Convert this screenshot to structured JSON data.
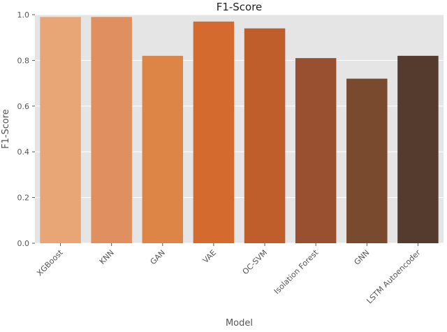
{
  "chart_data": {
    "type": "bar",
    "title": "F1-Score",
    "xlabel": "Model",
    "ylabel": "F1-Score",
    "categories": [
      "XGBoost",
      "KNN",
      "GAN",
      "VAE",
      "OC-SVM",
      "Isolation Forest",
      "GNN",
      "LSTM Autoencoder"
    ],
    "values": [
      0.99,
      0.99,
      0.82,
      0.97,
      0.94,
      0.81,
      0.72,
      0.82
    ],
    "ylim": [
      0,
      1.0
    ],
    "yticks": [
      0.0,
      0.2,
      0.4,
      0.6,
      0.8,
      1.0
    ],
    "ytick_labels": [
      "0.0",
      "0.2",
      "0.4",
      "0.6",
      "0.8",
      "1.0"
    ],
    "colors": [
      "#e8a576",
      "#e09060",
      "#dc8547",
      "#d46a2e",
      "#bf5e2a",
      "#985030",
      "#7a4a2e",
      "#553a2e"
    ],
    "grid": true,
    "background": "#e5e5e5"
  }
}
